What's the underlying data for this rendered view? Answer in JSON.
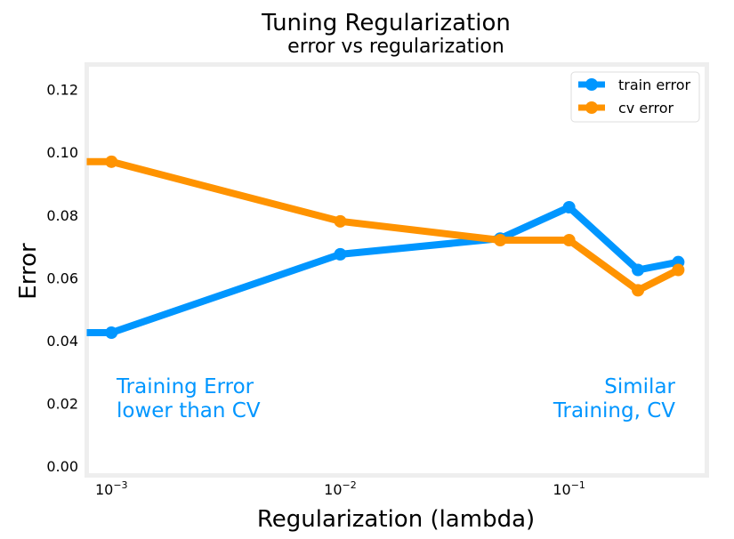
{
  "chart_data": {
    "type": "line",
    "title": "Tuning Regularization",
    "subtitle": "error vs regularization",
    "xlabel": "Regularization (lambda)",
    "ylabel": "Error",
    "xscale": "log",
    "xlim": [
      0.00078,
      0.4
    ],
    "ylim": [
      -0.003,
      0.128
    ],
    "yticks": [
      "0.00",
      "0.02",
      "0.04",
      "0.06",
      "0.08",
      "0.10",
      "0.12"
    ],
    "ytick_values": [
      0.0,
      0.02,
      0.04,
      0.06,
      0.08,
      0.1,
      0.12
    ],
    "xticks": [
      {
        "value": 0.001,
        "base": "10",
        "exp": "−3"
      },
      {
        "value": 0.01,
        "base": "10",
        "exp": "−2"
      },
      {
        "value": 0.1,
        "base": "10",
        "exp": "−1"
      }
    ],
    "grid": false,
    "legend_position": "top-right",
    "x": [
      0.0,
      0.001,
      0.01,
      0.05,
      0.1,
      0.2,
      0.3
    ],
    "series": [
      {
        "name": "train error",
        "color": "#0096ff",
        "values": [
          0.0425,
          0.0425,
          0.0675,
          0.0725,
          0.0825,
          0.0625,
          0.065
        ]
      },
      {
        "name": "cv error",
        "color": "#ff9300",
        "values": [
          0.097,
          0.097,
          0.078,
          0.072,
          0.072,
          0.056,
          0.0625
        ]
      }
    ],
    "annotations": [
      {
        "lines": [
          "Training Error",
          "lower than CV"
        ],
        "color": "#0096ff",
        "align": "left"
      },
      {
        "lines": [
          "Similar",
          "Training, CV"
        ],
        "color": "#0096ff",
        "align": "right"
      }
    ]
  }
}
